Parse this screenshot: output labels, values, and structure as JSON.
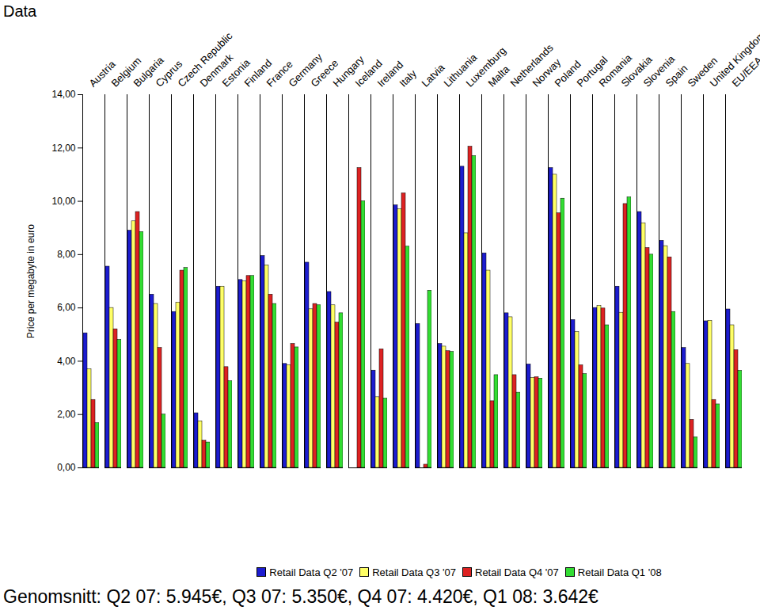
{
  "chart_data": {
    "type": "bar",
    "title": "Data",
    "caption": "Genomsnitt: Q2 07: 5.945€, Q3 07: 5.350€, Q4 07: 4.420€, Q1 08: 3.642€",
    "y_label": "Price per megabyte in euro",
    "categories": [
      "Austria",
      "Belgium",
      "Bulgaria",
      "Cyprus",
      "Czech Republic",
      "Denmark",
      "Estonia",
      "Finland",
      "France",
      "Germany",
      "Greece",
      "Hungary",
      "Iceland",
      "Ireland",
      "Italy",
      "Latvia",
      "Lithuania",
      "Luxemburg",
      "Malta",
      "Netherlands",
      "Norway",
      "Poland",
      "Portugal",
      "Romania",
      "Slovakia",
      "Slovenia",
      "Spain",
      "Sweden",
      "United Kingdom",
      "EU/EEA average"
    ],
    "series": [
      {
        "name": "Retail Data Q2 '07",
        "color": "#1c1cd0",
        "values": [
          5.05,
          7.55,
          8.9,
          6.5,
          5.85,
          2.05,
          6.8,
          7.05,
          7.95,
          3.9,
          7.7,
          6.6,
          null,
          3.65,
          9.85,
          5.4,
          4.65,
          11.3,
          8.05,
          5.8,
          3.88,
          11.25,
          5.55,
          6.0,
          6.8,
          9.6,
          8.52,
          4.5,
          5.5,
          5.945
        ]
      },
      {
        "name": "Retail Data Q3 '07",
        "color": "#ffff66",
        "values": [
          3.7,
          6.0,
          9.25,
          6.15,
          6.2,
          1.75,
          6.8,
          7.0,
          7.6,
          3.85,
          5.95,
          6.1,
          null,
          2.65,
          9.7,
          null,
          4.55,
          8.8,
          7.4,
          5.65,
          3.38,
          11.0,
          5.1,
          6.08,
          5.82,
          9.18,
          8.32,
          3.9,
          5.52,
          5.35
        ]
      },
      {
        "name": "Retail Data Q4 '07",
        "color": "#dd2222",
        "values": [
          2.55,
          5.2,
          9.6,
          4.5,
          7.4,
          1.02,
          3.78,
          7.2,
          6.5,
          4.65,
          6.15,
          5.45,
          11.25,
          4.45,
          10.3,
          0.12,
          4.38,
          12.05,
          2.5,
          3.48,
          3.4,
          9.55,
          3.85,
          5.98,
          9.9,
          8.25,
          7.9,
          1.8,
          2.55,
          4.42
        ]
      },
      {
        "name": "Retail Data Q1 '08",
        "color": "#33dd33",
        "values": [
          1.68,
          4.8,
          8.85,
          2.0,
          7.5,
          0.95,
          3.25,
          7.2,
          6.15,
          4.52,
          6.1,
          5.8,
          10.0,
          2.6,
          8.3,
          6.65,
          4.35,
          11.7,
          3.48,
          2.82,
          3.35,
          10.1,
          3.52,
          5.35,
          10.15,
          8.0,
          5.85,
          1.15,
          2.38,
          3.642
        ]
      }
    ],
    "ylim": [
      0,
      14
    ],
    "yticks": [
      {
        "value": 0,
        "label": "0,00"
      },
      {
        "value": 2,
        "label": "2,00"
      },
      {
        "value": 4,
        "label": "4,00"
      },
      {
        "value": 6,
        "label": "6,00"
      },
      {
        "value": 8,
        "label": "8,00"
      },
      {
        "value": 10,
        "label": "10,00"
      },
      {
        "value": 12,
        "label": "12,00"
      },
      {
        "value": 14,
        "label": "14,00"
      }
    ],
    "grid": false,
    "legend": "bottom"
  }
}
